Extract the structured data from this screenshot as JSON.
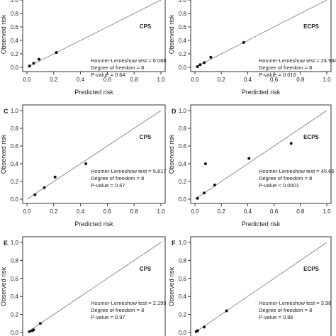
{
  "chart_data": [
    {
      "type": "scatter",
      "panel_label": "",
      "title": "CPS",
      "xlabel": "Predicted risk",
      "ylabel": "Observed risk",
      "xlim": [
        0,
        1
      ],
      "ylim": [
        0,
        1
      ],
      "x_ticks": [
        "0.0",
        "0.2",
        "0.4",
        "0.6",
        "0.8",
        "1.0"
      ],
      "y_ticks": [
        "0.0",
        "0.2",
        "0.4",
        "0.6",
        "0.8",
        "1.0"
      ],
      "y_tick_values": [
        0,
        0.2,
        0.4,
        0.6,
        0.8,
        1.0
      ],
      "reference_line": "diagonal",
      "points": {
        "x": [
          0.02,
          0.05,
          0.09,
          0.22
        ],
        "y": [
          0.02,
          0.06,
          0.12,
          0.22
        ]
      },
      "annotation": [
        "Hosmer-Lemeshow test = 6.088",
        "Degree of freedom = 8",
        "P-value = 0.64"
      ]
    },
    {
      "type": "scatter",
      "panel_label": "",
      "title": "ECPS",
      "xlabel": "Predicted risk",
      "ylabel": "Observed risk",
      "xlim": [
        0,
        1
      ],
      "ylim": [
        0,
        1
      ],
      "x_ticks": [
        "0.0",
        "0.2",
        "0.4",
        "0.6",
        "0.8",
        "1.0"
      ],
      "y_ticks": [
        "0.0",
        "0.2",
        "0.4",
        "0.6",
        "0.8",
        "1.0"
      ],
      "y_tick_values": [
        0,
        0.2,
        0.4,
        0.6,
        0.8,
        1.0
      ],
      "reference_line": "diagonal",
      "points": {
        "x": [
          0.02,
          0.04,
          0.07,
          0.12,
          0.37
        ],
        "y": [
          0.01,
          0.04,
          0.07,
          0.15,
          0.37
        ]
      },
      "annotation": [
        "Hosmer-Lemeshow test = 24.984",
        "Degree of freedom = 8",
        "P-value = 0.016"
      ]
    },
    {
      "type": "scatter",
      "panel_label": "C",
      "title": "CPS",
      "xlabel": "Predicted risk",
      "ylabel": "Observed risk",
      "xlim": [
        0,
        1
      ],
      "ylim": [
        0,
        1
      ],
      "x_ticks": [
        "0.0",
        "0.2",
        "0.4",
        "0.6",
        "0.8",
        "1.0"
      ],
      "y_ticks": [
        "0.0",
        "0.2",
        "0.4",
        "0.6",
        "0.8",
        "1.0"
      ],
      "y_tick_values": [
        0,
        0.2,
        0.4,
        0.6,
        0.8,
        1.0
      ],
      "reference_line": "diagonal",
      "points": {
        "x": [
          0.06,
          0.13,
          0.21,
          0.44
        ],
        "y": [
          0.05,
          0.13,
          0.25,
          0.4
        ]
      },
      "annotation": [
        "Hosmer-Lemeshow test = 5.817",
        "Degree of freedom = 8",
        "P-value = 0.67"
      ]
    },
    {
      "type": "scatter",
      "panel_label": "D",
      "title": "ECPS",
      "xlabel": "Predicted risk",
      "ylabel": "Observed risk",
      "xlim": [
        0,
        1
      ],
      "ylim": [
        0,
        1
      ],
      "x_ticks": [
        "0.0",
        "0.2",
        "0.4",
        "0.6",
        "0.8",
        "1.0"
      ],
      "y_ticks": [
        "0.0",
        "0.2",
        "0.4",
        "0.6",
        "0.8",
        "1.0"
      ],
      "y_tick_values": [
        0,
        0.2,
        0.4,
        0.6,
        0.8,
        1.0
      ],
      "reference_line": "diagonal",
      "points": {
        "x": [
          0.02,
          0.07,
          0.08,
          0.15,
          0.41,
          0.73
        ],
        "y": [
          0.01,
          0.07,
          0.4,
          0.16,
          0.46,
          0.63
        ]
      },
      "annotation": [
        "Hosmer-Lemeshow test = 45.66",
        "Degree of freedom = 8",
        "P-value < 0.0001"
      ]
    },
    {
      "type": "scatter",
      "panel_label": "E",
      "title": "CPS",
      "xlabel": "",
      "ylabel": "Observed risk",
      "xlim": [
        0,
        1
      ],
      "ylim": [
        0,
        1
      ],
      "x_ticks": [],
      "y_ticks": [
        "0.0",
        "0.2",
        "0.4",
        "0.6",
        "0.8",
        "1.0"
      ],
      "y_tick_values": [
        0,
        0.2,
        0.4,
        0.6,
        0.8,
        1.0
      ],
      "reference_line": "diagonal",
      "points": {
        "x": [
          0.02,
          0.04,
          0.05,
          0.1
        ],
        "y": [
          0.01,
          0.02,
          0.03,
          0.1
        ]
      },
      "annotation": [
        "Hosmer-Lemeshow test = 2.195",
        "Degree of freedom = 8",
        "P-value = 0.97"
      ]
    },
    {
      "type": "scatter",
      "panel_label": "F",
      "title": "ECPS",
      "xlabel": "",
      "ylabel": "Observed risk",
      "xlim": [
        0,
        1
      ],
      "ylim": [
        0,
        1
      ],
      "x_ticks": [],
      "y_ticks": [
        "0.0",
        "0.2",
        "0.4",
        "0.6",
        "0.8",
        "1.0"
      ],
      "y_tick_values": [
        0,
        0.2,
        0.4,
        0.6,
        0.8,
        1.0
      ],
      "reference_line": "diagonal",
      "points": {
        "x": [
          0.01,
          0.02,
          0.07,
          0.24
        ],
        "y": [
          0.01,
          0.02,
          0.06,
          0.24
        ]
      },
      "annotation": [
        "Hosmer-Lemeshow test = 3.98",
        "Degree of freedom = 8",
        "P-value = 0.86"
      ]
    }
  ]
}
